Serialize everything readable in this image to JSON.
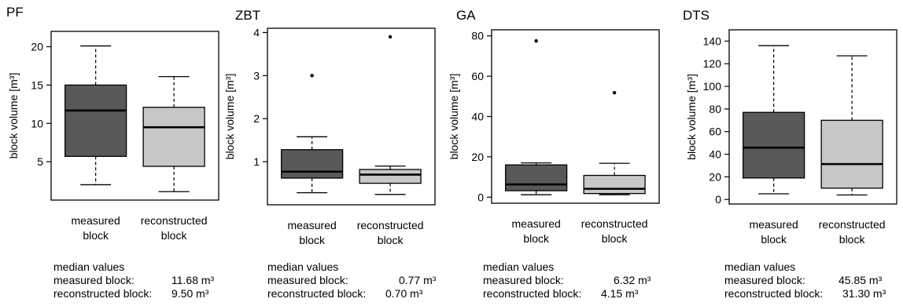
{
  "median_heading": "median values",
  "chart_data": [
    {
      "type": "boxplot",
      "title": "PF",
      "ylabel": "block volume [m³]",
      "ylim": [
        0,
        22
      ],
      "yticks": [
        "5",
        "10",
        "15",
        "20"
      ],
      "categories": [
        "measured block",
        "reconstructed block"
      ],
      "category_lines": [
        [
          "measured",
          "block"
        ],
        [
          "reconstructed",
          "block"
        ]
      ],
      "colors": [
        "#595959",
        "#c8c8c8"
      ],
      "boxes": [
        {
          "whisker_low": 2,
          "q1": 5.7,
          "median": 11.68,
          "q3": 15,
          "whisker_high": 20.1,
          "outliers": []
        },
        {
          "whisker_low": 1.1,
          "q1": 4.4,
          "median": 9.5,
          "q3": 12.1,
          "whisker_high": 16.1,
          "outliers": []
        }
      ],
      "medians": [
        {
          "label": "measured block:",
          "value": "11.68 m³"
        },
        {
          "label": "reconstructed block:",
          "value": "9.50 m³"
        }
      ]
    },
    {
      "type": "boxplot",
      "title": "ZBT",
      "ylabel": "block volume [m³]",
      "ylim": [
        0,
        4.1
      ],
      "yticks": [
        "1",
        "2",
        "3",
        "4"
      ],
      "categories": [
        "measured block",
        "reconstructed block"
      ],
      "category_lines": [
        [
          "measured",
          "block"
        ],
        [
          "reconstructed",
          "block"
        ]
      ],
      "colors": [
        "#595959",
        "#c8c8c8"
      ],
      "boxes": [
        {
          "whisker_low": 0.28,
          "q1": 0.62,
          "median": 0.77,
          "q3": 1.28,
          "whisker_high": 1.58,
          "outliers": [
            3.0
          ]
        },
        {
          "whisker_low": 0.24,
          "q1": 0.5,
          "median": 0.7,
          "q3": 0.82,
          "whisker_high": 0.9,
          "outliers": [
            3.9
          ]
        }
      ],
      "medians": [
        {
          "label": "measured block:",
          "value": "0.77 m³"
        },
        {
          "label": "reconstructed block:",
          "value": "0.70 m³"
        }
      ]
    },
    {
      "type": "boxplot",
      "title": "GA",
      "ylabel": "block volume [m³]",
      "ylim": [
        -3,
        83
      ],
      "yticks": [
        "0",
        "20",
        "40",
        "60",
        "80"
      ],
      "categories": [
        "measured block",
        "reconstructed block"
      ],
      "category_lines": [
        [
          "measured",
          "block"
        ],
        [
          "reconstructed",
          "block"
        ]
      ],
      "colors": [
        "#595959",
        "#c8c8c8"
      ],
      "boxes": [
        {
          "whisker_low": 1.2,
          "q1": 3.2,
          "median": 6.32,
          "q3": 16,
          "whisker_high": 17,
          "outliers": [
            77.5
          ]
        },
        {
          "whisker_low": 1.2,
          "q1": 1.8,
          "median": 4.15,
          "q3": 10.8,
          "whisker_high": 16.8,
          "outliers": [
            51.8
          ]
        }
      ],
      "medians": [
        {
          "label": "measured block:",
          "value": "6.32 m³"
        },
        {
          "label": "reconstructed block:",
          "value": "4.15 m³"
        }
      ]
    },
    {
      "type": "boxplot",
      "title": "DTS",
      "ylabel": "block volume [m³]",
      "ylim": [
        -4,
        150
      ],
      "yticks": [
        "0",
        "20",
        "40",
        "60",
        "80",
        "100",
        "120",
        "140"
      ],
      "categories": [
        "measured block",
        "reconstructed block"
      ],
      "category_lines": [
        [
          "measured",
          "block"
        ],
        [
          "reconstructed",
          "block"
        ]
      ],
      "colors": [
        "#595959",
        "#c8c8c8"
      ],
      "boxes": [
        {
          "whisker_low": 5,
          "q1": 19,
          "median": 45.85,
          "q3": 77,
          "whisker_high": 136,
          "outliers": []
        },
        {
          "whisker_low": 4,
          "q1": 10,
          "median": 31.3,
          "q3": 70,
          "whisker_high": 127,
          "outliers": []
        }
      ],
      "medians": [
        {
          "label": "measured block:",
          "value": "45.85 m³"
        },
        {
          "label": "reconstructed block:",
          "value": "31.30 m³"
        }
      ]
    }
  ]
}
